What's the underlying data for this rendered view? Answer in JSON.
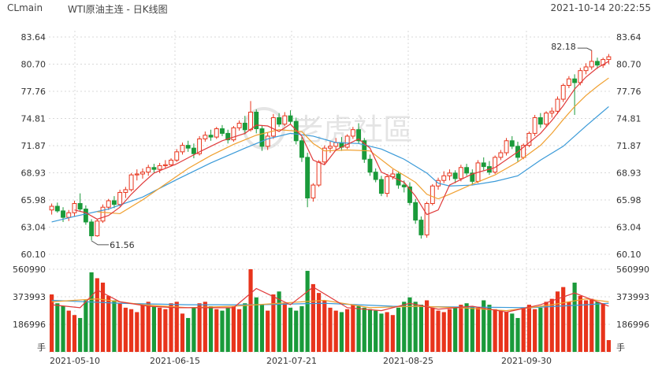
{
  "header": {
    "symbol": "CLmain",
    "title": "WTI原油主连 - 日K线图",
    "timestamp": "2021-10-14 20:22:55"
  },
  "watermark": "老虎社區",
  "colors": {
    "up": "#e8341c",
    "down": "#1a9a3a",
    "ma5": "#e03a3a",
    "ma10": "#f0a030",
    "ma20": "#3a9ad8",
    "grid": "#d8d8d8"
  },
  "chart_data": [
    {
      "type": "candlestick",
      "title": "",
      "y_ticks": [
        "83.64",
        "80.70",
        "77.76",
        "74.81",
        "71.87",
        "68.93",
        "65.98",
        "63.04",
        "60.10"
      ],
      "ylim": [
        60.1,
        83.64
      ],
      "x_ticks": [
        "2021-05-10",
        "2021-06-15",
        "2021-07-21",
        "2021-08-25",
        "2021-09-30"
      ],
      "annotations": [
        {
          "label": "82.18",
          "value": 82.18
        },
        {
          "label": "61.56",
          "value": 61.56
        }
      ],
      "ohlc": [
        [
          64.9,
          65.6,
          64.4,
          65.3
        ],
        [
          65.3,
          65.7,
          64.6,
          64.8
        ],
        [
          64.8,
          65.2,
          63.6,
          64.1
        ],
        [
          64.1,
          64.9,
          63.7,
          64.6
        ],
        [
          64.6,
          65.9,
          64.2,
          65.6
        ],
        [
          65.6,
          66.7,
          64.7,
          65.0
        ],
        [
          65.0,
          65.4,
          63.3,
          63.6
        ],
        [
          63.6,
          63.9,
          61.6,
          62.1
        ],
        [
          62.1,
          63.9,
          62.0,
          63.7
        ],
        [
          63.7,
          65.5,
          63.5,
          65.2
        ],
        [
          65.2,
          66.1,
          64.9,
          65.9
        ],
        [
          65.9,
          66.4,
          65.1,
          65.5
        ],
        [
          65.5,
          67.1,
          65.3,
          66.8
        ],
        [
          66.8,
          67.4,
          66.2,
          67.1
        ],
        [
          67.1,
          68.9,
          66.9,
          68.7
        ],
        [
          68.7,
          69.3,
          68.1,
          68.8
        ],
        [
          68.8,
          69.4,
          68.3,
          69.0
        ],
        [
          69.0,
          69.8,
          68.6,
          69.5
        ],
        [
          69.5,
          69.9,
          68.9,
          69.3
        ],
        [
          69.3,
          70.0,
          68.9,
          69.7
        ],
        [
          69.7,
          70.3,
          69.4,
          69.8
        ],
        [
          69.8,
          70.5,
          69.6,
          70.3
        ],
        [
          70.3,
          71.5,
          70.1,
          71.2
        ],
        [
          71.2,
          72.2,
          70.9,
          71.9
        ],
        [
          71.9,
          72.4,
          71.2,
          71.6
        ],
        [
          71.6,
          72.1,
          70.5,
          71.0
        ],
        [
          71.0,
          72.9,
          70.8,
          72.6
        ],
        [
          72.6,
          73.4,
          72.3,
          73.0
        ],
        [
          73.0,
          73.6,
          72.4,
          72.8
        ],
        [
          72.8,
          73.9,
          72.6,
          73.7
        ],
        [
          73.7,
          74.1,
          72.9,
          73.2
        ],
        [
          73.2,
          73.6,
          72.1,
          72.5
        ],
        [
          72.5,
          74.0,
          72.3,
          73.8
        ],
        [
          73.8,
          74.6,
          73.5,
          74.3
        ],
        [
          74.3,
          75.1,
          73.1,
          73.6
        ],
        [
          73.6,
          76.7,
          73.4,
          75.5
        ],
        [
          75.5,
          75.8,
          73.2,
          73.7
        ],
        [
          73.7,
          74.0,
          71.3,
          71.8
        ],
        [
          71.8,
          73.3,
          71.4,
          72.9
        ],
        [
          72.9,
          75.3,
          72.6,
          74.9
        ],
        [
          74.9,
          75.4,
          73.9,
          74.2
        ],
        [
          74.2,
          75.5,
          74.0,
          75.1
        ],
        [
          75.1,
          75.7,
          74.2,
          74.5
        ],
        [
          74.5,
          74.9,
          72.0,
          72.4
        ],
        [
          72.4,
          72.8,
          70.1,
          70.6
        ],
        [
          70.6,
          71.1,
          65.2,
          66.2
        ],
        [
          66.2,
          67.8,
          65.8,
          67.6
        ],
        [
          67.6,
          70.3,
          67.4,
          70.1
        ],
        [
          70.1,
          71.9,
          69.8,
          71.6
        ],
        [
          71.6,
          72.3,
          71.1,
          71.8
        ],
        [
          71.8,
          72.7,
          71.4,
          72.2
        ],
        [
          72.2,
          72.8,
          71.3,
          71.7
        ],
        [
          71.7,
          73.1,
          71.5,
          72.9
        ],
        [
          72.9,
          73.9,
          72.6,
          73.6
        ],
        [
          73.6,
          74.3,
          72.1,
          72.4
        ],
        [
          72.4,
          72.7,
          70.0,
          70.4
        ],
        [
          70.4,
          70.9,
          68.6,
          69.0
        ],
        [
          69.0,
          69.4,
          67.9,
          68.2
        ],
        [
          68.2,
          68.6,
          66.4,
          66.7
        ],
        [
          66.7,
          68.8,
          66.3,
          68.5
        ],
        [
          68.5,
          69.3,
          68.2,
          68.8
        ],
        [
          68.8,
          69.1,
          67.2,
          67.6
        ],
        [
          67.6,
          68.1,
          66.8,
          67.4
        ],
        [
          67.4,
          67.9,
          65.4,
          65.7
        ],
        [
          65.7,
          66.1,
          63.4,
          63.8
        ],
        [
          63.8,
          64.2,
          61.8,
          62.2
        ],
        [
          62.2,
          65.8,
          61.9,
          65.6
        ],
        [
          65.6,
          67.7,
          65.4,
          67.5
        ],
        [
          67.5,
          68.4,
          67.1,
          68.1
        ],
        [
          68.1,
          69.1,
          67.8,
          68.6
        ],
        [
          68.6,
          69.3,
          68.1,
          68.9
        ],
        [
          68.9,
          69.2,
          67.8,
          68.3
        ],
        [
          68.3,
          69.8,
          68.0,
          69.5
        ],
        [
          69.5,
          69.9,
          68.6,
          68.9
        ],
        [
          68.9,
          69.3,
          67.6,
          68.0
        ],
        [
          68.0,
          70.3,
          67.8,
          70.0
        ],
        [
          70.0,
          70.6,
          69.2,
          69.6
        ],
        [
          69.6,
          70.2,
          68.7,
          69.0
        ],
        [
          69.0,
          70.8,
          68.8,
          70.6
        ],
        [
          70.6,
          71.4,
          70.3,
          71.1
        ],
        [
          71.1,
          72.7,
          70.8,
          72.4
        ],
        [
          72.4,
          72.9,
          71.5,
          71.8
        ],
        [
          71.8,
          72.3,
          70.1,
          70.6
        ],
        [
          70.6,
          72.1,
          70.4,
          71.9
        ],
        [
          71.9,
          73.4,
          71.7,
          73.2
        ],
        [
          73.2,
          75.2,
          72.9,
          74.9
        ],
        [
          74.9,
          75.4,
          73.8,
          74.2
        ],
        [
          74.2,
          75.6,
          73.9,
          75.4
        ],
        [
          75.4,
          76.0,
          74.9,
          75.6
        ],
        [
          75.6,
          77.2,
          75.3,
          76.9
        ],
        [
          76.9,
          78.6,
          76.6,
          78.4
        ],
        [
          78.4,
          79.4,
          78.1,
          79.1
        ],
        [
          79.1,
          79.6,
          75.2,
          78.7
        ],
        [
          78.7,
          80.3,
          78.4,
          80.0
        ],
        [
          80.0,
          80.8,
          79.6,
          80.4
        ],
        [
          80.4,
          82.2,
          80.1,
          81.0
        ],
        [
          81.0,
          81.4,
          80.2,
          80.6
        ],
        [
          80.6,
          81.4,
          80.3,
          81.2
        ],
        [
          81.2,
          81.8,
          80.7,
          81.5
        ]
      ],
      "ma5": [
        [
          4,
          64.9
        ],
        [
          6,
          64.6
        ],
        [
          8,
          63.9
        ],
        [
          10,
          64.3
        ],
        [
          12,
          65.2
        ],
        [
          14,
          66.6
        ],
        [
          16,
          67.8
        ],
        [
          18,
          68.9
        ],
        [
          22,
          69.9
        ],
        [
          26,
          71.2
        ],
        [
          30,
          72.4
        ],
        [
          34,
          73.2
        ],
        [
          36,
          74.1
        ],
        [
          38,
          74.0
        ],
        [
          40,
          73.4
        ],
        [
          42,
          74.2
        ],
        [
          44,
          72.9
        ],
        [
          46,
          70.3
        ],
        [
          48,
          69.8
        ],
        [
          50,
          71.4
        ],
        [
          54,
          72.6
        ],
        [
          56,
          71.6
        ],
        [
          58,
          69.0
        ],
        [
          62,
          67.9
        ],
        [
          64,
          66.4
        ],
        [
          66,
          64.4
        ],
        [
          68,
          64.9
        ],
        [
          70,
          67.6
        ],
        [
          74,
          68.8
        ],
        [
          78,
          69.5
        ],
        [
          82,
          71.2
        ],
        [
          86,
          73.2
        ],
        [
          88,
          74.6
        ],
        [
          90,
          76.2
        ],
        [
          92,
          78.0
        ],
        [
          94,
          79.3
        ],
        [
          96,
          80.3
        ],
        [
          98,
          81.0
        ]
      ],
      "ma10": [
        [
          8,
          64.7
        ],
        [
          12,
          64.5
        ],
        [
          16,
          66.0
        ],
        [
          20,
          67.7
        ],
        [
          24,
          69.4
        ],
        [
          28,
          70.8
        ],
        [
          32,
          72.0
        ],
        [
          36,
          73.0
        ],
        [
          40,
          73.6
        ],
        [
          44,
          73.4
        ],
        [
          46,
          72.1
        ],
        [
          48,
          71.3
        ],
        [
          52,
          71.4
        ],
        [
          56,
          71.3
        ],
        [
          60,
          69.4
        ],
        [
          64,
          67.9
        ],
        [
          66,
          66.6
        ],
        [
          68,
          66.1
        ],
        [
          70,
          66.6
        ],
        [
          74,
          67.7
        ],
        [
          78,
          68.7
        ],
        [
          82,
          70.1
        ],
        [
          86,
          71.9
        ],
        [
          88,
          73.2
        ],
        [
          90,
          74.7
        ],
        [
          92,
          76.1
        ],
        [
          94,
          77.3
        ],
        [
          96,
          78.3
        ],
        [
          98,
          79.2
        ]
      ],
      "ma20": [
        [
          0,
          63.6
        ],
        [
          4,
          64.2
        ],
        [
          10,
          65.0
        ],
        [
          16,
          66.3
        ],
        [
          22,
          68.2
        ],
        [
          28,
          70.0
        ],
        [
          34,
          71.6
        ],
        [
          38,
          72.6
        ],
        [
          42,
          73.2
        ],
        [
          46,
          72.9
        ],
        [
          50,
          72.2
        ],
        [
          54,
          72.1
        ],
        [
          58,
          71.5
        ],
        [
          62,
          70.4
        ],
        [
          66,
          68.9
        ],
        [
          68,
          67.8
        ],
        [
          70,
          67.5
        ],
        [
          74,
          67.6
        ],
        [
          78,
          68.0
        ],
        [
          82,
          68.6
        ],
        [
          86,
          70.3
        ],
        [
          90,
          71.8
        ],
        [
          94,
          74.0
        ],
        [
          98,
          76.1
        ]
      ]
    },
    {
      "type": "bar",
      "title": "",
      "y_ticks": [
        "560990",
        "373993",
        "186996"
      ],
      "y_unit_label": "手",
      "ylim": [
        0,
        560990
      ],
      "values": [
        390000,
        330000,
        310000,
        280000,
        250000,
        230000,
        350000,
        540000,
        500000,
        470000,
        380000,
        350000,
        330000,
        300000,
        290000,
        270000,
        320000,
        340000,
        310000,
        300000,
        290000,
        330000,
        340000,
        260000,
        230000,
        300000,
        330000,
        340000,
        310000,
        290000,
        280000,
        300000,
        310000,
        290000,
        330000,
        560990,
        370000,
        320000,
        280000,
        390000,
        410000,
        330000,
        300000,
        280000,
        310000,
        550000,
        460000,
        400000,
        350000,
        300000,
        280000,
        270000,
        290000,
        320000,
        310000,
        300000,
        290000,
        280000,
        260000,
        270000,
        250000,
        300000,
        340000,
        370000,
        340000,
        320000,
        350000,
        300000,
        280000,
        270000,
        290000,
        300000,
        320000,
        330000,
        310000,
        300000,
        350000,
        320000,
        290000,
        280000,
        270000,
        260000,
        230000,
        300000,
        320000,
        290000,
        300000,
        340000,
        360000,
        410000,
        440000,
        340000,
        470000,
        380000,
        350000,
        360000,
        340000,
        330000,
        80000
      ],
      "ma_a": [
        [
          0,
          320000
        ],
        [
          5,
          300000
        ],
        [
          8,
          420000
        ],
        [
          12,
          340000
        ],
        [
          17,
          310000
        ],
        [
          22,
          300000
        ],
        [
          27,
          300000
        ],
        [
          32,
          300000
        ],
        [
          36,
          430000
        ],
        [
          42,
          320000
        ],
        [
          46,
          440000
        ],
        [
          52,
          300000
        ],
        [
          58,
          280000
        ],
        [
          63,
          330000
        ],
        [
          68,
          290000
        ],
        [
          74,
          310000
        ],
        [
          80,
          270000
        ],
        [
          86,
          320000
        ],
        [
          92,
          400000
        ],
        [
          98,
          310000
        ]
      ],
      "ma_b": [
        [
          0,
          340000
        ],
        [
          8,
          360000
        ],
        [
          16,
          320000
        ],
        [
          24,
          300000
        ],
        [
          32,
          310000
        ],
        [
          40,
          330000
        ],
        [
          48,
          350000
        ],
        [
          56,
          300000
        ],
        [
          64,
          310000
        ],
        [
          72,
          300000
        ],
        [
          80,
          280000
        ],
        [
          88,
          320000
        ],
        [
          94,
          360000
        ],
        [
          98,
          340000
        ]
      ],
      "ma_c": [
        [
          0,
          350000
        ],
        [
          12,
          330000
        ],
        [
          24,
          320000
        ],
        [
          36,
          320000
        ],
        [
          48,
          330000
        ],
        [
          60,
          310000
        ],
        [
          72,
          305000
        ],
        [
          84,
          300000
        ],
        [
          94,
          320000
        ],
        [
          98,
          330000
        ]
      ]
    }
  ]
}
